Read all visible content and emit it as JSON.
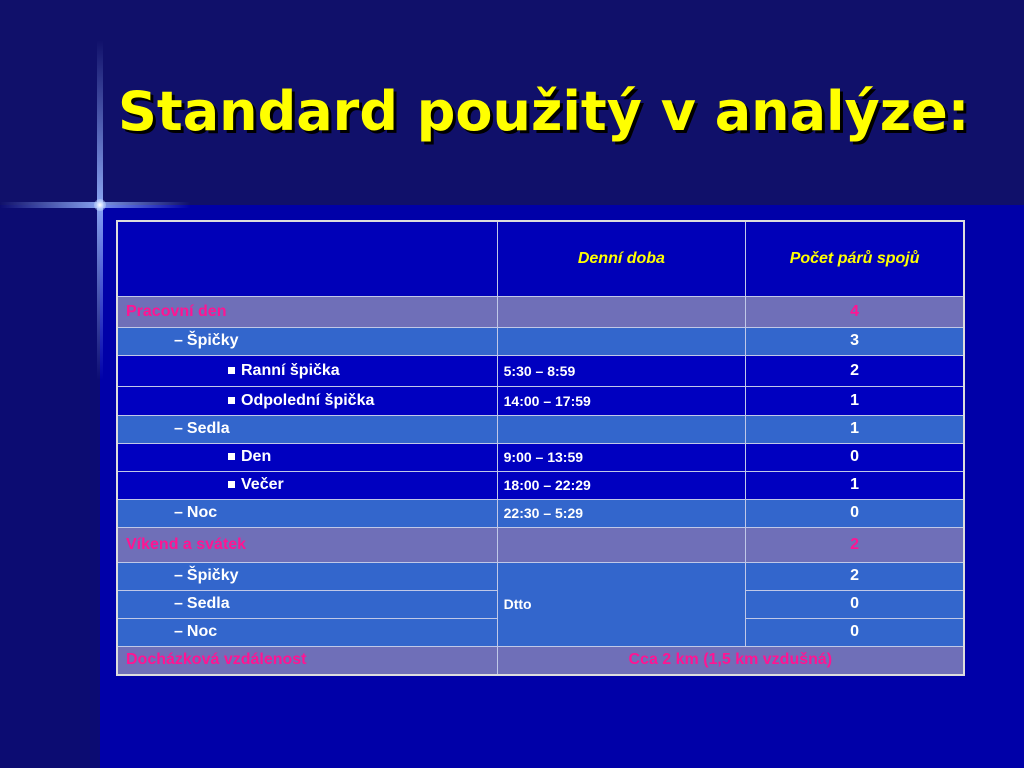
{
  "title": "Standard použitý v analýze:",
  "table": {
    "headers": [
      "",
      "Denní doba",
      "Počet párů spojů"
    ],
    "rows": [
      {
        "label": "Pracovní den",
        "time": "",
        "count": "4"
      },
      {
        "label": "Špičky",
        "time": "",
        "count": "3"
      },
      {
        "label": "Ranní špička",
        "time": "5:30 – 8:59",
        "count": "2"
      },
      {
        "label": "Odpolední špička",
        "time": "14:00 – 17:59",
        "count": "1"
      },
      {
        "label": "Sedla",
        "time": "",
        "count": "1"
      },
      {
        "label": "Den",
        "time": "9:00 – 13:59",
        "count": "0"
      },
      {
        "label": "Večer",
        "time": "18:00 – 22:29",
        "count": "1"
      },
      {
        "label": "Noc",
        "time": "22:30 – 5:29",
        "count": "0"
      },
      {
        "label": "Víkend a svátek",
        "time": "",
        "count": "2"
      },
      {
        "label": "Špičky",
        "time": "Dtto",
        "count": "2"
      },
      {
        "label": "Sedla",
        "time": "",
        "count": "0"
      },
      {
        "label": "Noc",
        "time": "",
        "count": "0"
      },
      {
        "label": "Docházková vzdálenost",
        "merged": "Cca 2 km (1,5 km vzdušná)"
      }
    ]
  },
  "colors": {
    "background": "#000080",
    "title": "#ffff00",
    "category_text": "#ff1493",
    "category_row": "#6f6fb8",
    "light_row": "#3366cc",
    "dark_row": "#0000c0"
  }
}
